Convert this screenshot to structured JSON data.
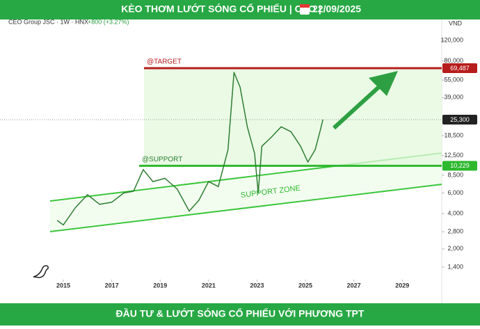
{
  "header": {
    "title": "KÈO THƠM LƯỚT SÓNG CỔ PHIẾU | CEO |",
    "date": "22/09/2025"
  },
  "footer": {
    "text": "ĐẦU TƯ & LƯỚT SÓNG CỔ PHIẾU VỚI PHƯƠNG TPT"
  },
  "chart_data": {
    "type": "line",
    "symbol": "CEO Group JSC · 1W · HNX",
    "change": "+800 (+3.27%)",
    "currency": "VND",
    "x": [
      2014.75,
      2015.0,
      2015.5,
      2016.0,
      2016.5,
      2017.0,
      2017.5,
      2017.9,
      2018.3,
      2018.7,
      2019.2,
      2019.7,
      2020.2,
      2020.6,
      2021.0,
      2021.4,
      2021.8,
      2022.05,
      2022.3,
      2022.6,
      2022.9,
      2023.05,
      2023.2,
      2023.6,
      2024.0,
      2024.4,
      2024.8,
      2025.1,
      2025.4,
      2025.6,
      2025.72
    ],
    "values": [
      3500,
      3200,
      4500,
      5800,
      4800,
      5000,
      6000,
      6200,
      9500,
      7500,
      8000,
      6500,
      4200,
      5200,
      7500,
      6800,
      14000,
      64000,
      48000,
      22000,
      13000,
      6000,
      15000,
      18000,
      22000,
      20000,
      15000,
      11000,
      14000,
      20000,
      25300
    ],
    "color": "#2e7d32",
    "log_scale": true,
    "xlim": [
      2012.385,
      2030.63
    ],
    "xticks": [
      2015,
      2017,
      2019,
      2021,
      2023,
      2025,
      2027,
      2029
    ],
    "ylim": [
      1125,
      176000
    ],
    "yticks": [
      {
        "value": 1400,
        "label": "1,400"
      },
      {
        "value": 2000,
        "label": "2,000"
      },
      {
        "value": 2800,
        "label": "2,800"
      },
      {
        "value": 4000,
        "label": "4,000"
      },
      {
        "value": 6000,
        "label": "6,000"
      },
      {
        "value": 8500,
        "label": "8,500"
      },
      {
        "value": 12500,
        "label": "12,500"
      },
      {
        "value": 18500,
        "label": "18,500"
      },
      {
        "value": 39000,
        "label": "39,000"
      },
      {
        "value": 55000,
        "label": "55,000"
      },
      {
        "value": 80000,
        "label": "80,000"
      },
      {
        "value": 120000,
        "label": "120,000"
      }
    ],
    "target": {
      "label": "@TARGET",
      "value": 69487,
      "value_label": "69,487",
      "color": "#b71c1c"
    },
    "support": {
      "label": "@SUPPORT",
      "value": 10229,
      "value_label": "10,229",
      "color": "#2eb82e"
    },
    "last_price": {
      "value": 25300,
      "value_label": "25,300"
    },
    "zone_label": "SUPPORT ZONE"
  }
}
